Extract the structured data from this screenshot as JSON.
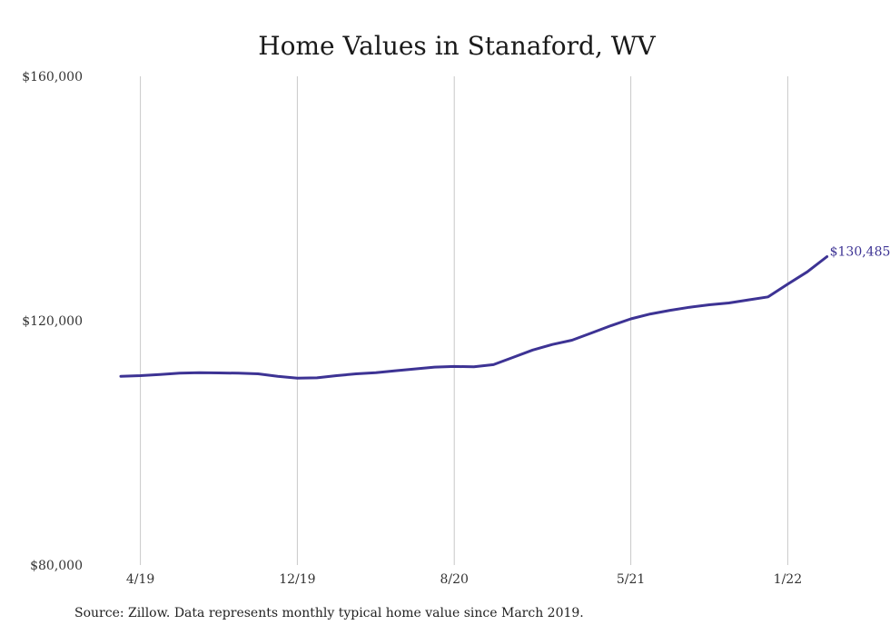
{
  "chart_data": {
    "type": "line",
    "title": "Home Values in Stanaford, WV",
    "xlabel": "",
    "ylabel": "",
    "ylim": [
      80000,
      160000
    ],
    "yticks": [
      80000,
      120000,
      160000
    ],
    "y_tick_labels": [
      "$80,000",
      "$120,000",
      "$160,000"
    ],
    "grid": "vertical",
    "x_ticks": [
      {
        "label": "4/19",
        "x": "2019-04"
      },
      {
        "label": "12/19",
        "x": "2019-12"
      },
      {
        "label": "8/20",
        "x": "2020-08"
      },
      {
        "label": "5/21",
        "x": "2021-05"
      },
      {
        "label": "1/22",
        "x": "2022-01"
      }
    ],
    "x": [
      "2019-03",
      "2019-04",
      "2019-05",
      "2019-06",
      "2019-07",
      "2019-08",
      "2019-09",
      "2019-10",
      "2019-11",
      "2019-12",
      "2020-01",
      "2020-02",
      "2020-03",
      "2020-04",
      "2020-05",
      "2020-06",
      "2020-07",
      "2020-08",
      "2020-09",
      "2020-10",
      "2020-11",
      "2020-12",
      "2021-01",
      "2021-02",
      "2021-03",
      "2021-04",
      "2021-05",
      "2021-06",
      "2021-07",
      "2021-08",
      "2021-09",
      "2021-10",
      "2021-11",
      "2021-12",
      "2022-01",
      "2022-02",
      "2022-03"
    ],
    "series": [
      {
        "color": "#3d3394",
        "values": [
          110900,
          111000,
          111200,
          111400,
          111500,
          111450,
          111400,
          111300,
          110900,
          110600,
          110650,
          111000,
          111300,
          111500,
          111800,
          112100,
          112400,
          112500,
          112450,
          112800,
          114000,
          115200,
          116100,
          116800,
          118000,
          119200,
          120300,
          121100,
          121700,
          122200,
          122600,
          122900,
          123400,
          123900,
          126000,
          128000,
          130485
        ]
      }
    ],
    "annotations": [
      {
        "text": "$130,485",
        "x": "2022-03",
        "y": 130485
      }
    ]
  },
  "footer": {
    "source": "Source: Zillow. Data represents monthly typical home value since March 2019."
  }
}
